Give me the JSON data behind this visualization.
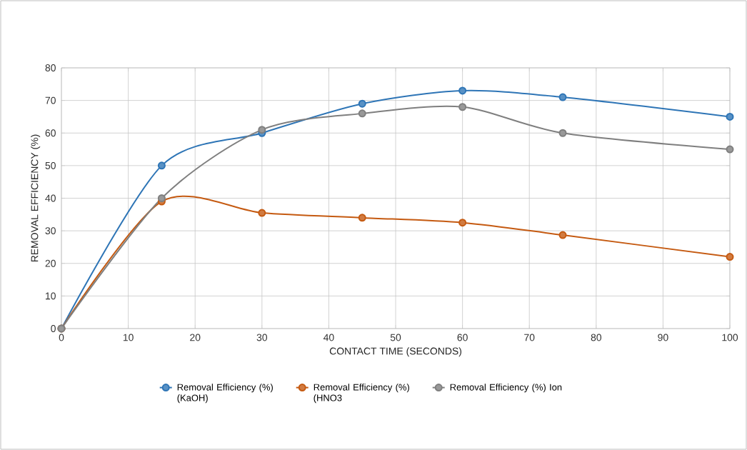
{
  "chart_data": {
    "type": "line",
    "xlabel": "CONTACT TIME (SECONDS)",
    "ylabel": "REMOVAL EFFICIENCY (%)",
    "x": [
      0,
      15,
      30,
      45,
      60,
      75,
      100
    ],
    "series": [
      {
        "name": "Removal Efficiency (%) (KaOH)",
        "color": "#2e75b6",
        "values": [
          0,
          50,
          60,
          69,
          73,
          71,
          65
        ]
      },
      {
        "name": "Removal Efficiency (%) (HNO3",
        "color": "#c55a11",
        "values": [
          0,
          39,
          35.5,
          34,
          32.5,
          28.7,
          22
        ]
      },
      {
        "name": "Removal Efficiency (%) Ion",
        "color": "#7f7f7f",
        "values": [
          0,
          40,
          61,
          66,
          68,
          60,
          55
        ]
      }
    ],
    "xlim": [
      0,
      100
    ],
    "ylim": [
      0,
      80
    ],
    "xticks": [
      0,
      10,
      20,
      30,
      40,
      50,
      60,
      70,
      80,
      90,
      100
    ],
    "yticks": [
      0,
      10,
      20,
      30,
      40,
      50,
      60,
      70,
      80
    ],
    "grid": true,
    "legend": "bottom",
    "marker": "circle",
    "line_style": "solid"
  }
}
